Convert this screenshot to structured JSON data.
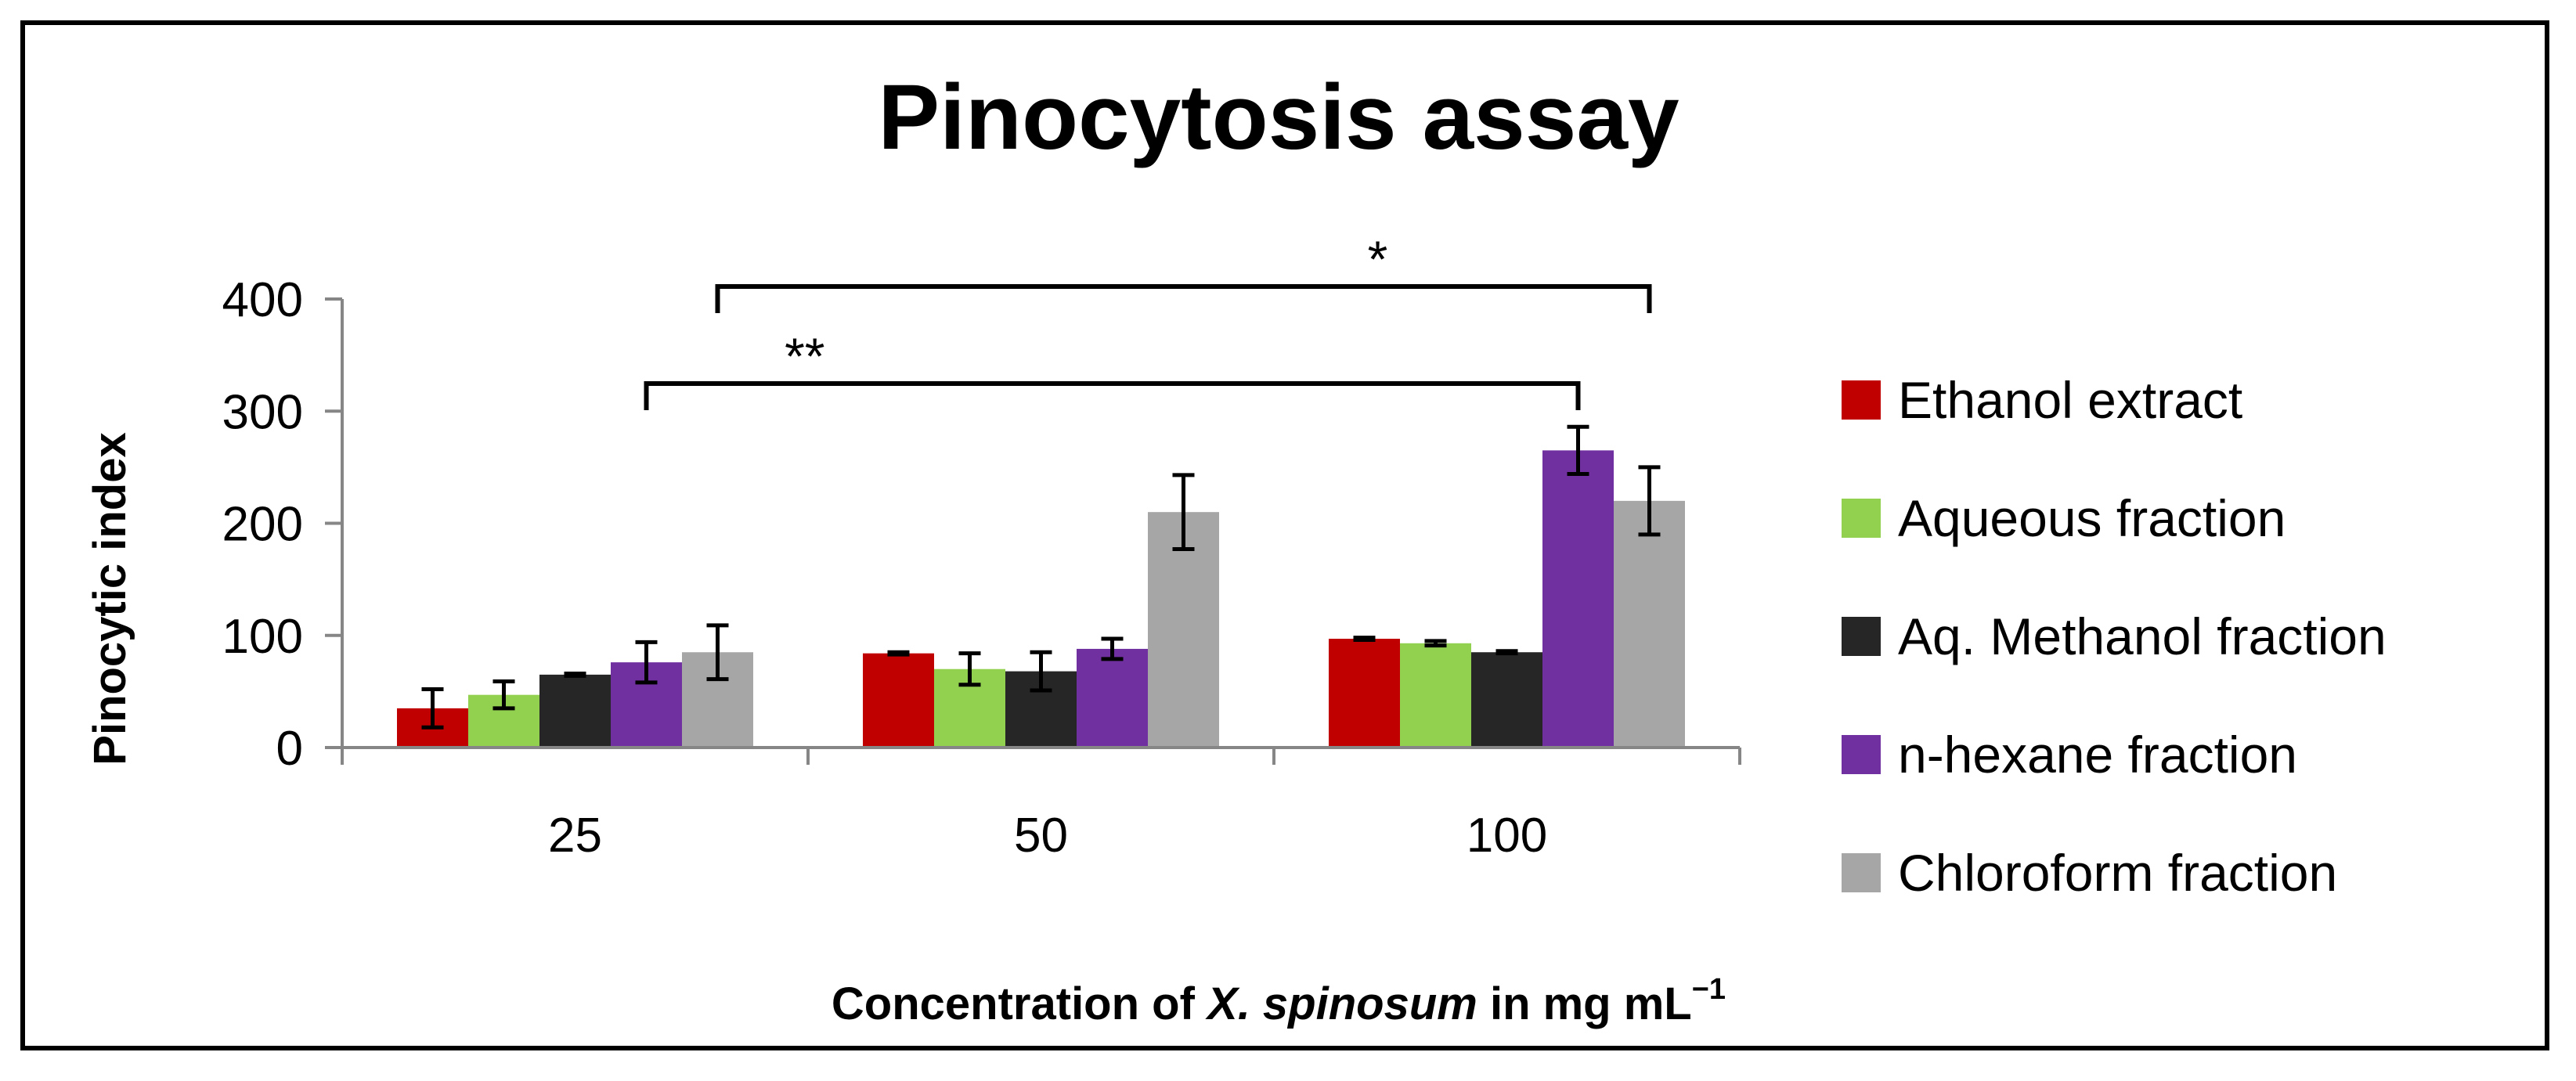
{
  "chart_data": {
    "type": "bar",
    "title": "Pinocytosis assay",
    "ylabel": "Pinocytic index",
    "xlabel_parts": {
      "prefix": "Concentration of ",
      "species": "X. spinosum",
      "suffix": " in mg mL",
      "superscript": "−1"
    },
    "ylim": [
      0,
      400
    ],
    "yticks": [
      0,
      100,
      200,
      300,
      400
    ],
    "categories": [
      "25",
      "50",
      "100"
    ],
    "series": [
      {
        "name": "Ethanol extract",
        "color": "#c00000",
        "values": [
          35,
          84,
          97
        ],
        "errors": [
          17,
          1,
          1
        ]
      },
      {
        "name": "Aqueous fraction",
        "color": "#92d050",
        "values": [
          47,
          70,
          93
        ],
        "errors": [
          12,
          14,
          2
        ]
      },
      {
        "name": "Aq. Methanol fraction",
        "color": "#262626",
        "values": [
          65,
          68,
          85
        ],
        "errors": [
          1,
          17,
          1
        ]
      },
      {
        "name": "n-hexane fraction",
        "color": "#7030a0",
        "values": [
          76,
          88,
          265
        ],
        "errors": [
          18,
          9,
          21
        ]
      },
      {
        "name": "Chloroform fraction",
        "color": "#a6a6a6",
        "values": [
          85,
          210,
          220
        ],
        "errors": [
          24,
          33,
          30
        ]
      }
    ],
    "significance": [
      {
        "label": "**",
        "from": {
          "category": 0,
          "series": 3
        },
        "to": {
          "category": 2,
          "series": 3
        }
      },
      {
        "label": "*",
        "from": {
          "category": 0,
          "series": 4
        },
        "to": {
          "category": 2,
          "series": 4
        }
      }
    ],
    "legend_position": "right",
    "grid": false
  }
}
